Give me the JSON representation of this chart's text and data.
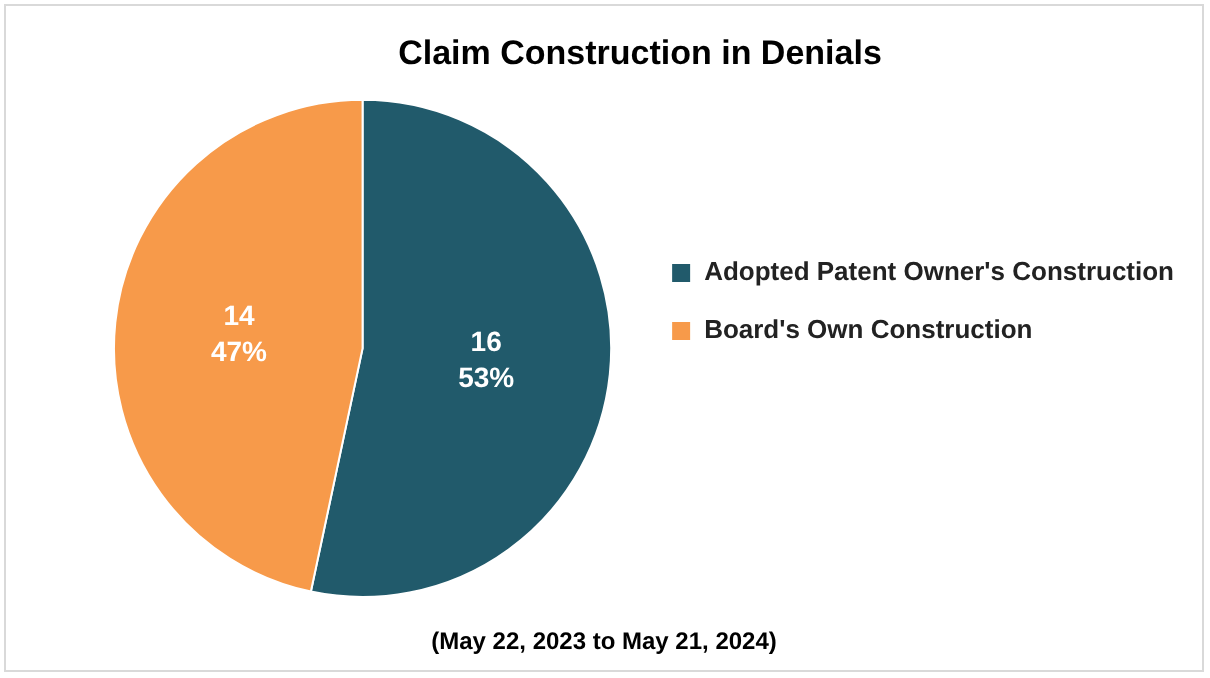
{
  "chart_data": {
    "type": "pie",
    "title": "Claim Construction in Denials",
    "categories": [
      "Adopted Patent Owner's Construction",
      "Board's Own Construction"
    ],
    "values": [
      16,
      14
    ],
    "colors": [
      "#215a6b",
      "#f79a4a"
    ],
    "value_labels": [
      "16\n53%",
      "14\n47%"
    ],
    "legend": "right",
    "annotations": [
      "(May 22, 2023 to May 21, 2024)"
    ]
  }
}
